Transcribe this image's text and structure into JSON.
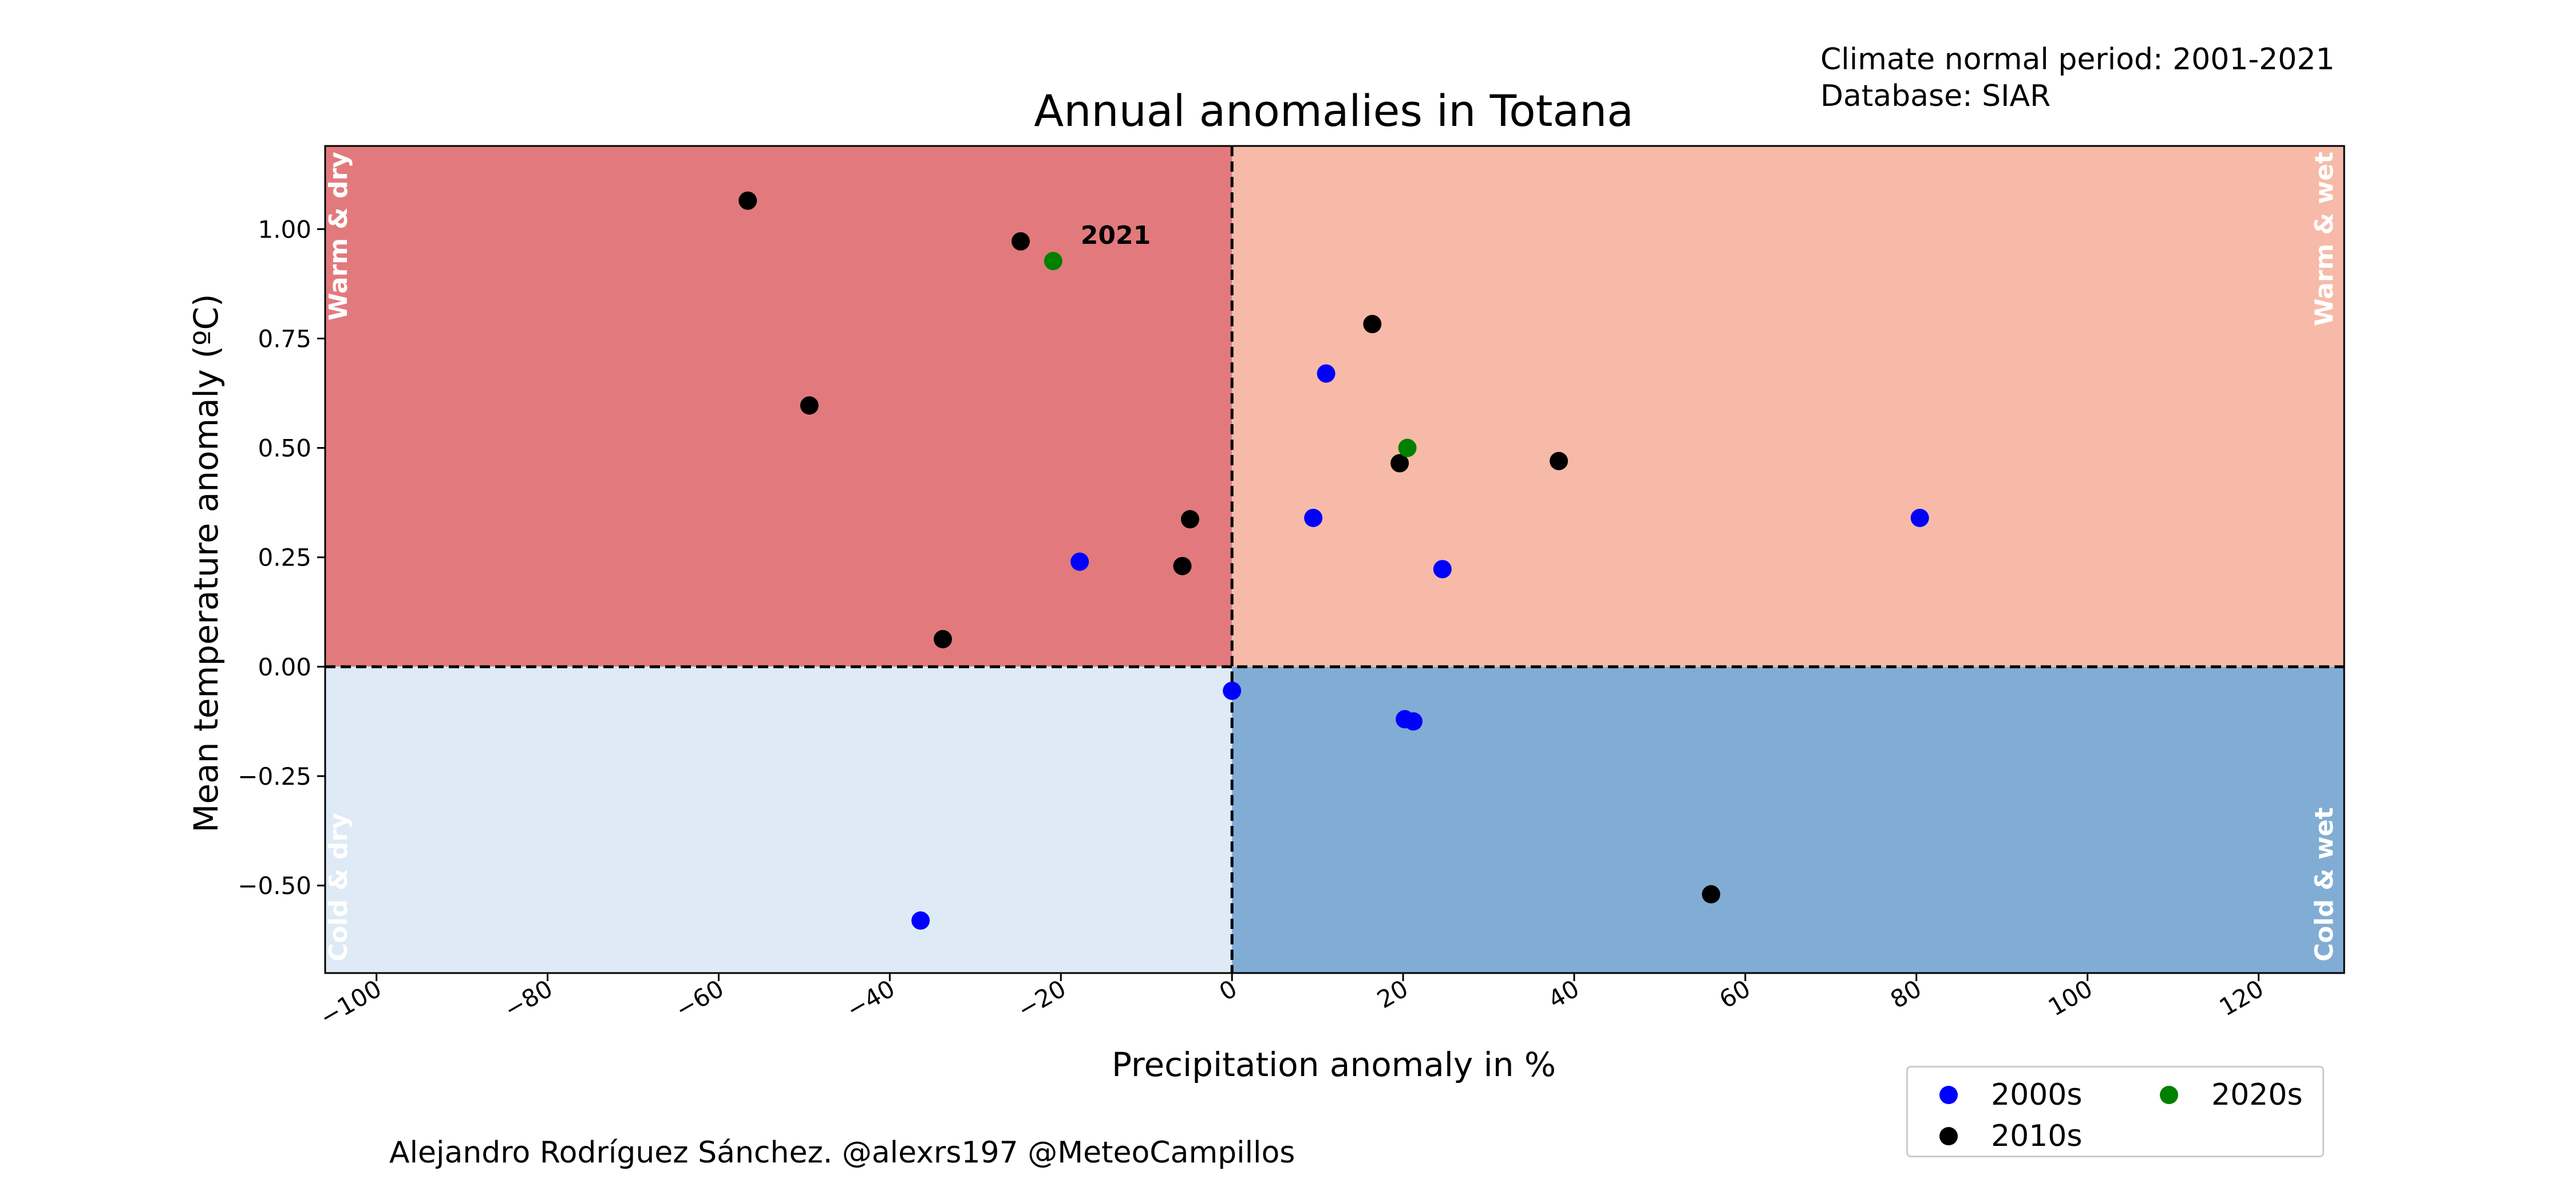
{
  "meta": {
    "climate_period": "Climate normal period: 2001-2021",
    "database": "Database: SIAR"
  },
  "credit": "Alejandro Rodríguez Sánchez. @alexrs197 @MeteoCampillos",
  "chart_data": {
    "type": "scatter",
    "title": "Annual anomalies in Totana",
    "xlabel": "Precipitation anomaly in %",
    "ylabel": "Mean temperature anomaly (ºC)",
    "xlim": [
      -106,
      130
    ],
    "ylim": [
      -0.7,
      1.19
    ],
    "x_ticks": [
      -100,
      -80,
      -60,
      -40,
      -20,
      0,
      20,
      40,
      60,
      80,
      100,
      120
    ],
    "x_tick_labels": [
      "−100",
      "−80",
      "−60",
      "−40",
      "−20",
      "0",
      "20",
      "40",
      "60",
      "80",
      "100",
      "120"
    ],
    "y_ticks": [
      1.0,
      0.75,
      0.5,
      0.25,
      0.0,
      -0.25,
      -0.5
    ],
    "y_tick_labels": [
      "1.00",
      "0.75",
      "0.50",
      "0.25",
      "0.00",
      "−0.25",
      "−0.50"
    ],
    "grid": false,
    "reference_lines": {
      "x": 0,
      "y": 0,
      "style": "dashed"
    },
    "quadrants": [
      {
        "label": "Warm & dry",
        "color": "#e27a7d"
      },
      {
        "label": "Warm & wet",
        "color": "#f7baa8"
      },
      {
        "label": "Cold & dry",
        "color": "#deeaf5"
      },
      {
        "label": "Cold & wet",
        "color": "#81add4"
      }
    ],
    "series": [
      {
        "name": "2000s",
        "color": "#0000ff",
        "points": [
          [
            -36.4,
            -0.58
          ],
          [
            -17.8,
            0.24
          ],
          [
            0.0,
            -0.055
          ],
          [
            9.5,
            0.34
          ],
          [
            11.0,
            0.67
          ],
          [
            20.2,
            -0.12
          ],
          [
            21.2,
            -0.125
          ],
          [
            24.6,
            0.223
          ],
          [
            80.4,
            0.34
          ]
        ]
      },
      {
        "name": "2010s",
        "color": "#000000",
        "points": [
          [
            -56.6,
            1.065
          ],
          [
            -49.4,
            0.597
          ],
          [
            -33.8,
            0.063
          ],
          [
            -24.7,
            0.972
          ],
          [
            -5.8,
            0.23
          ],
          [
            -4.9,
            0.337
          ],
          [
            16.4,
            0.783
          ],
          [
            19.6,
            0.465
          ],
          [
            38.2,
            0.47
          ],
          [
            56.0,
            -0.52
          ]
        ]
      },
      {
        "name": "2020s",
        "color": "#008000",
        "points": [
          [
            -20.9,
            0.927
          ],
          [
            20.5,
            0.5
          ]
        ]
      }
    ],
    "annotations": [
      {
        "text": "2021",
        "x": -20.9,
        "y": 0.927
      }
    ],
    "legend": {
      "position": "bottom-right",
      "columns": 2
    }
  }
}
